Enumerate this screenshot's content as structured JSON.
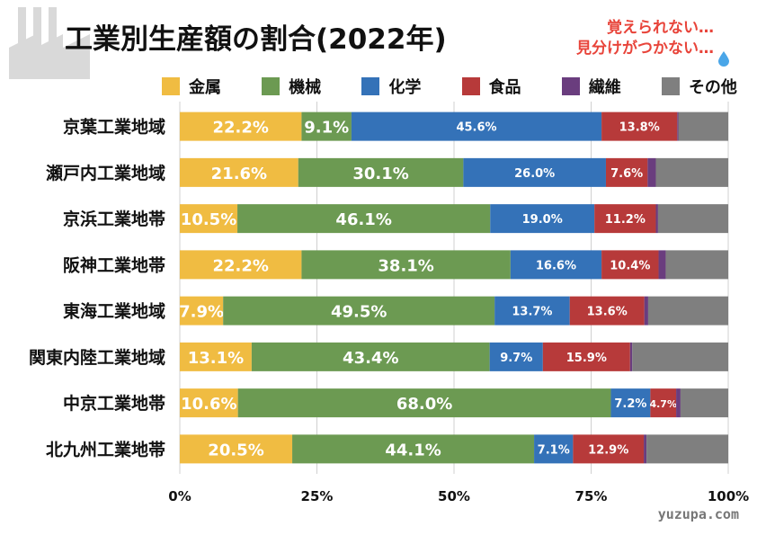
{
  "title": "工業別生産額の割合(2022年)",
  "notes": [
    "覚えられない…",
    "見分けがつかない…"
  ],
  "watermark": "yuzupa.com",
  "chart_data": {
    "type": "bar",
    "orientation": "horizontal",
    "stacked": true,
    "title": "工業別生産額の割合(2022年)",
    "categories": [
      "京葉工業地域",
      "瀬戸内工業地域",
      "京浜工業地帯",
      "阪神工業地帯",
      "東海工業地域",
      "関東内陸工業地域",
      "中京工業地帯",
      "北九州工業地帯"
    ],
    "series": [
      {
        "name": "金属",
        "color": "#f0bc42",
        "values": [
          22.2,
          21.6,
          10.5,
          22.2,
          7.9,
          13.1,
          10.6,
          20.5
        ],
        "labels": [
          "22.2%",
          "21.6%",
          "10.5%",
          "22.2%",
          "7.9%",
          "13.1%",
          "10.6%",
          "20.5%"
        ]
      },
      {
        "name": "機械",
        "color": "#6c9a52",
        "values": [
          9.1,
          30.1,
          46.1,
          38.1,
          49.5,
          43.4,
          68.0,
          44.1
        ],
        "labels": [
          "9.1%",
          "30.1%",
          "46.1%",
          "38.1%",
          "49.5%",
          "43.4%",
          "68.0%",
          "44.1%"
        ]
      },
      {
        "name": "化学",
        "color": "#3472b8",
        "values": [
          45.6,
          26.0,
          19.0,
          16.6,
          13.7,
          9.7,
          7.2,
          7.1
        ],
        "labels": [
          "45.6%",
          "26.0%",
          "19.0%",
          "16.6%",
          "13.7%",
          "9.7%",
          "7.2%",
          "7.1%"
        ]
      },
      {
        "name": "食品",
        "color": "#b73a3a",
        "values": [
          13.8,
          7.6,
          11.2,
          10.4,
          13.6,
          15.9,
          4.7,
          12.9
        ],
        "labels": [
          "13.8%",
          "7.6%",
          "11.2%",
          "10.4%",
          "13.6%",
          "15.9%",
          "4.7%",
          "12.9%"
        ]
      },
      {
        "name": "繊維",
        "color": "#6a3d7e",
        "values": [
          0.2,
          1.5,
          0.4,
          1.3,
          0.7,
          0.4,
          0.8,
          0.5
        ],
        "labels": [
          "",
          "",
          "",
          "",
          "",
          "",
          "",
          ""
        ]
      },
      {
        "name": "その他",
        "color": "#7f7f7f",
        "values": [
          9.1,
          13.2,
          12.8,
          11.4,
          14.6,
          17.5,
          8.7,
          14.9
        ],
        "labels": [
          "",
          "",
          "",
          "",
          "",
          "",
          "",
          ""
        ]
      }
    ],
    "xlim": [
      0,
      100
    ],
    "xticks": [
      "0%",
      "25%",
      "50%",
      "75%",
      "100%"
    ],
    "grid": true,
    "legend": "top"
  }
}
